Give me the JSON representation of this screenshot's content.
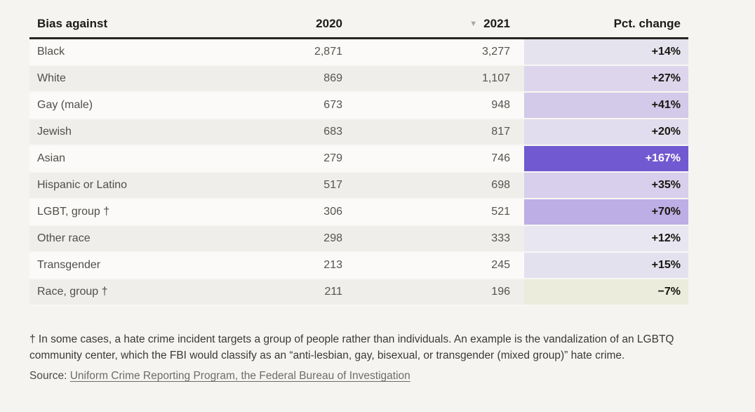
{
  "page": {
    "background": "#f5f4f1"
  },
  "table": {
    "headers": [
      {
        "label": "Bias against"
      },
      {
        "label": "2020"
      },
      {
        "label": "2021",
        "sort_icon": "▼"
      },
      {
        "label": "Pct. change"
      }
    ],
    "rows": [
      {
        "label": "Black",
        "y2020": "2,871",
        "y2021": "3,277",
        "pct": "+14%",
        "pct_bg": "#e5e3ee",
        "pct_color": "#18160f"
      },
      {
        "label": "White",
        "y2020": "869",
        "y2021": "1,107",
        "pct": "+27%",
        "pct_bg": "#ddd5ec",
        "pct_color": "#18160f"
      },
      {
        "label": "Gay (male)",
        "y2020": "673",
        "y2021": "948",
        "pct": "+41%",
        "pct_bg": "#d3c9e9",
        "pct_color": "#18160f"
      },
      {
        "label": "Jewish",
        "y2020": "683",
        "y2021": "817",
        "pct": "+20%",
        "pct_bg": "#e1ddee",
        "pct_color": "#18160f"
      },
      {
        "label": "Asian",
        "y2020": "279",
        "y2021": "746",
        "pct": "+167%",
        "pct_bg": "#7159d1",
        "pct_color": "#ffffff"
      },
      {
        "label": "Hispanic or Latino",
        "y2020": "517",
        "y2021": "698",
        "pct": "+35%",
        "pct_bg": "#d7cfeb",
        "pct_color": "#18160f"
      },
      {
        "label": "LGBT, group †",
        "y2020": "306",
        "y2021": "521",
        "pct": "+70%",
        "pct_bg": "#bdaee6",
        "pct_color": "#18160f"
      },
      {
        "label": "Other race",
        "y2020": "298",
        "y2021": "333",
        "pct": "+12%",
        "pct_bg": "#e8e6f1",
        "pct_color": "#18160f"
      },
      {
        "label": "Transgender",
        "y2020": "213",
        "y2021": "245",
        "pct": "+15%",
        "pct_bg": "#e4e1ef",
        "pct_color": "#18160f"
      },
      {
        "label": "Race, group †",
        "y2020": "211",
        "y2021": "196",
        "pct": "−7%",
        "pct_bg": "#ebecdb",
        "pct_color": "#18160f"
      }
    ]
  },
  "footnote": "† In some cases, a hate crime incident targets a group of people rather than individuals. An example is the vandalization of an LGBTQ community center, which the FBI would classify as an “anti-lesbian, gay, bisexual, or transgender (mixed group)” hate crime.",
  "source": {
    "prefix": "Source: ",
    "link_text": "Uniform Crime Reporting Program, the Federal Bureau of Investigation"
  },
  "chart_data": {
    "type": "table",
    "columns": [
      "Bias against",
      "2020",
      "2021",
      "Pct. change"
    ],
    "sorted_by": "2021",
    "sort_direction": "descending",
    "rows": [
      [
        "Black",
        2871,
        3277,
        "+14%"
      ],
      [
        "White",
        869,
        1107,
        "+27%"
      ],
      [
        "Gay (male)",
        673,
        948,
        "+41%"
      ],
      [
        "Jewish",
        683,
        817,
        "+20%"
      ],
      [
        "Asian",
        279,
        746,
        "+167%"
      ],
      [
        "Hispanic or Latino",
        517,
        698,
        "+35%"
      ],
      [
        "LGBT, group †",
        306,
        521,
        "+70%"
      ],
      [
        "Other race",
        298,
        333,
        "+12%"
      ],
      [
        "Transgender",
        213,
        245,
        "+15%"
      ],
      [
        "Race, group †",
        211,
        196,
        "−7%"
      ]
    ],
    "heatmap_column": "Pct. change",
    "heatmap_colors": {
      "max_positive": "#7159d1",
      "light_positive": "#e8e6f1",
      "negative": "#ebecdb"
    }
  }
}
